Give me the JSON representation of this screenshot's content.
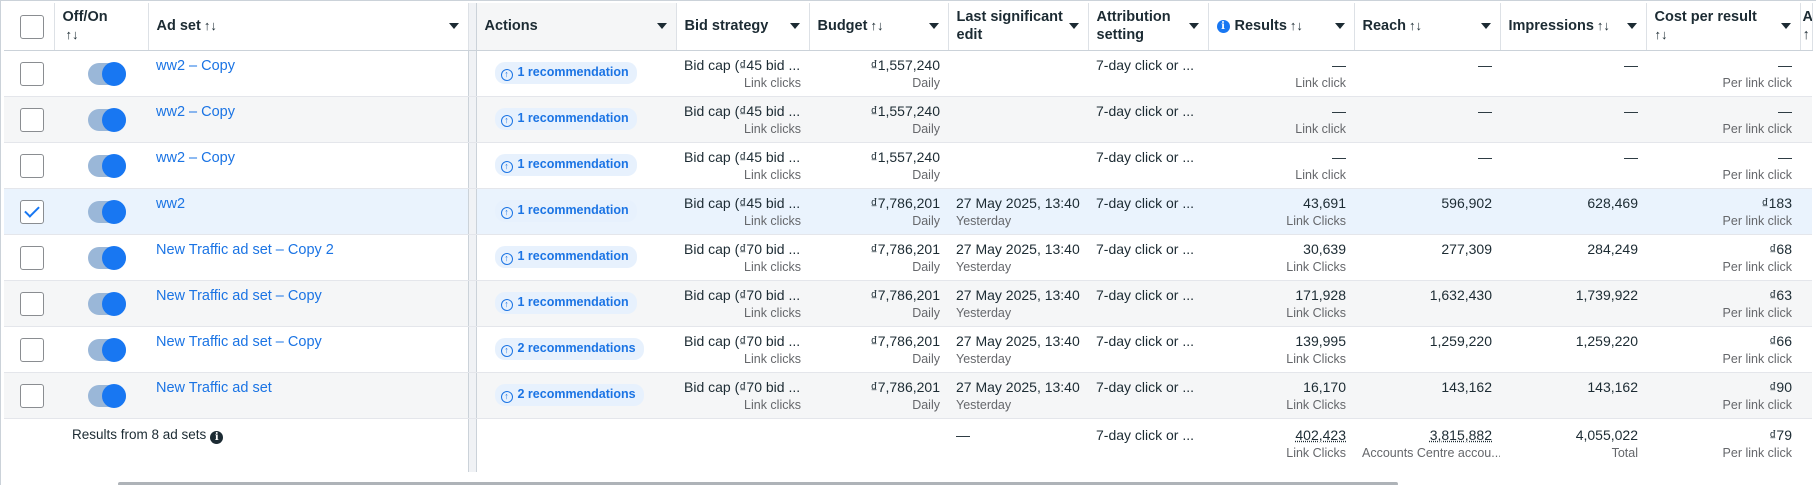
{
  "header": {
    "off_on": "Off/On",
    "ad_set": "Ad set",
    "actions": "Actions",
    "bid_strategy": "Bid strategy",
    "budget": "Budget",
    "last_edit": "Last significant edit",
    "attribution": "Attribution setting",
    "results": "Results",
    "reach": "Reach",
    "impressions": "Impressions",
    "cost_per_result": "Cost per result",
    "overflow": "A",
    "sort_glyph": "↑↓"
  },
  "rows": [
    {
      "name": "ww2 – Copy",
      "checked": false,
      "recommendation": "1 recommendation",
      "bid": "Bid cap (₫45 bid ...",
      "bid_sub": "Link clicks",
      "budget": "₫1,557,240",
      "budget_sub": "Daily",
      "last_edit": "",
      "last_edit_sub": "",
      "attribution": "7-day click or ...",
      "results": "—",
      "results_sub": "Link click",
      "reach": "—",
      "impressions": "—",
      "cpr": "—",
      "cpr_sub": "Per link click"
    },
    {
      "name": "ww2 – Copy",
      "checked": false,
      "recommendation": "1 recommendation",
      "bid": "Bid cap (₫45 bid ...",
      "bid_sub": "Link clicks",
      "budget": "₫1,557,240",
      "budget_sub": "Daily",
      "last_edit": "",
      "last_edit_sub": "",
      "attribution": "7-day click or ...",
      "results": "—",
      "results_sub": "Link click",
      "reach": "—",
      "impressions": "—",
      "cpr": "—",
      "cpr_sub": "Per link click"
    },
    {
      "name": "ww2 – Copy",
      "checked": false,
      "recommendation": "1 recommendation",
      "bid": "Bid cap (₫45 bid ...",
      "bid_sub": "Link clicks",
      "budget": "₫1,557,240",
      "budget_sub": "Daily",
      "last_edit": "",
      "last_edit_sub": "",
      "attribution": "7-day click or ...",
      "results": "—",
      "results_sub": "Link click",
      "reach": "—",
      "impressions": "—",
      "cpr": "—",
      "cpr_sub": "Per link click"
    },
    {
      "name": "ww2",
      "checked": true,
      "recommendation": "1 recommendation",
      "bid": "Bid cap (₫45 bid ...",
      "bid_sub": "Link clicks",
      "budget": "₫7,786,201",
      "budget_sub": "Daily",
      "last_edit": "27 May 2025, 13:40",
      "last_edit_sub": "Yesterday",
      "attribution": "7-day click or ...",
      "results": "43,691",
      "results_sub": "Link Clicks",
      "reach": "596,902",
      "impressions": "628,469",
      "cpr": "₫183",
      "cpr_sub": "Per link click"
    },
    {
      "name": "New Traffic ad set – Copy 2",
      "checked": false,
      "recommendation": "1 recommendation",
      "bid": "Bid cap (₫70 bid ...",
      "bid_sub": "Link clicks",
      "budget": "₫7,786,201",
      "budget_sub": "Daily",
      "last_edit": "27 May 2025, 13:40",
      "last_edit_sub": "Yesterday",
      "attribution": "7-day click or ...",
      "results": "30,639",
      "results_sub": "Link Clicks",
      "reach": "277,309",
      "impressions": "284,249",
      "cpr": "₫68",
      "cpr_sub": "Per link click"
    },
    {
      "name": "New Traffic ad set – Copy",
      "checked": false,
      "recommendation": "1 recommendation",
      "bid": "Bid cap (₫70 bid ...",
      "bid_sub": "Link clicks",
      "budget": "₫7,786,201",
      "budget_sub": "Daily",
      "last_edit": "27 May 2025, 13:40",
      "last_edit_sub": "Yesterday",
      "attribution": "7-day click or ...",
      "results": "171,928",
      "results_sub": "Link Clicks",
      "reach": "1,632,430",
      "impressions": "1,739,922",
      "cpr": "₫63",
      "cpr_sub": "Per link click"
    },
    {
      "name": "New Traffic ad set – Copy",
      "checked": false,
      "recommendation": "2 recommendations",
      "bid": "Bid cap (₫70 bid ...",
      "bid_sub": "Link clicks",
      "budget": "₫7,786,201",
      "budget_sub": "Daily",
      "last_edit": "27 May 2025, 13:40",
      "last_edit_sub": "Yesterday",
      "attribution": "7-day click or ...",
      "results": "139,995",
      "results_sub": "Link Clicks",
      "reach": "1,259,220",
      "impressions": "1,259,220",
      "cpr": "₫66",
      "cpr_sub": "Per link click"
    },
    {
      "name": "New Traffic ad set",
      "checked": false,
      "recommendation": "2 recommendations",
      "bid": "Bid cap (₫70 bid ...",
      "bid_sub": "Link clicks",
      "budget": "₫7,786,201",
      "budget_sub": "Daily",
      "last_edit": "27 May 2025, 13:40",
      "last_edit_sub": "Yesterday",
      "attribution": "7-day click or ...",
      "results": "16,170",
      "results_sub": "Link Clicks",
      "reach": "143,162",
      "impressions": "143,162",
      "cpr": "₫90",
      "cpr_sub": "Per link click"
    }
  ],
  "footer": {
    "label": "Results from 8 ad sets",
    "last_edit": "—",
    "attribution": "7-day click or ...",
    "results": "402,423",
    "results_sub": "Link Clicks",
    "reach": "3,815,882",
    "reach_sub": "Accounts Centre accou...",
    "impressions": "4,055,022",
    "impressions_sub": "Total",
    "cpr": "₫79",
    "cpr_sub": "Per link click"
  },
  "colors": {
    "link": "#1b74e4",
    "toggle_on": "#1877f2",
    "selected_row": "#eaf3fd"
  }
}
